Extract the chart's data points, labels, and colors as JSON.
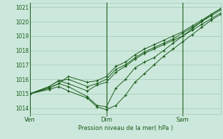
{
  "background_color": "#cce8dc",
  "grid_color": "#a0c8b0",
  "line_color": "#1a5c1a",
  "xlabel": "Pression niveau de la mer( hPa )",
  "xtick_labels": [
    "Ven",
    "Dim",
    "Sam"
  ],
  "ylim": [
    1013.6,
    1021.3
  ],
  "yticks": [
    1014,
    1015,
    1016,
    1017,
    1018,
    1019,
    1020,
    1021
  ],
  "series": [
    {
      "x": [
        0,
        12,
        18,
        24,
        36,
        42,
        48,
        54,
        60,
        66,
        72,
        78,
        84,
        90,
        96,
        102,
        108,
        114,
        120
      ],
      "y": [
        1015.0,
        1015.3,
        1015.5,
        1015.2,
        1014.7,
        1014.1,
        1013.9,
        1014.2,
        1014.9,
        1015.8,
        1016.4,
        1017.0,
        1017.6,
        1018.1,
        1018.6,
        1019.1,
        1019.6,
        1020.1,
        1020.5
      ]
    },
    {
      "x": [
        0,
        12,
        18,
        24,
        36,
        42,
        48,
        54,
        60,
        66,
        72,
        78,
        84,
        90,
        96,
        102,
        108,
        114,
        120
      ],
      "y": [
        1015.0,
        1015.4,
        1015.7,
        1015.5,
        1014.8,
        1014.2,
        1014.1,
        1015.4,
        1016.0,
        1016.8,
        1017.2,
        1017.5,
        1018.0,
        1018.5,
        1019.0,
        1019.5,
        1020.0,
        1020.5,
        1020.9
      ]
    },
    {
      "x": [
        0,
        12,
        18,
        24,
        36,
        42,
        48,
        54,
        60,
        66,
        72,
        78,
        84,
        90,
        96,
        102,
        108,
        114,
        120
      ],
      "y": [
        1015.0,
        1015.5,
        1015.9,
        1015.7,
        1015.2,
        1015.6,
        1015.8,
        1016.5,
        1016.9,
        1017.4,
        1017.8,
        1018.1,
        1018.4,
        1018.7,
        1019.0,
        1019.4,
        1019.8,
        1020.2,
        1020.6
      ]
    },
    {
      "x": [
        0,
        12,
        18,
        24,
        36,
        42,
        48,
        54,
        60,
        66,
        72,
        78,
        84,
        90,
        96,
        102,
        108,
        114,
        120
      ],
      "y": [
        1015.0,
        1015.5,
        1015.9,
        1016.0,
        1015.5,
        1015.7,
        1016.0,
        1016.7,
        1017.0,
        1017.5,
        1017.9,
        1018.2,
        1018.5,
        1018.8,
        1019.2,
        1019.6,
        1020.0,
        1020.4,
        1020.8
      ]
    },
    {
      "x": [
        0,
        12,
        18,
        24,
        36,
        42,
        48,
        54,
        60,
        66,
        72,
        78,
        84,
        90,
        96,
        102,
        108,
        114,
        120
      ],
      "y": [
        1015.0,
        1015.4,
        1015.7,
        1016.2,
        1015.8,
        1015.9,
        1016.2,
        1016.9,
        1017.2,
        1017.7,
        1018.1,
        1018.4,
        1018.7,
        1019.0,
        1019.3,
        1019.7,
        1020.1,
        1020.5,
        1020.9
      ]
    }
  ],
  "vlines_x": [
    0,
    48,
    96
  ],
  "xtick_x": [
    0,
    48,
    96
  ],
  "xlim": [
    0,
    120
  ]
}
